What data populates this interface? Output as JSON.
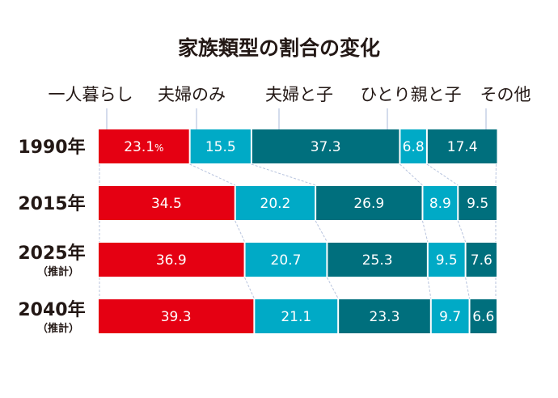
{
  "chart_data": {
    "type": "bar",
    "stacked": true,
    "orientation": "horizontal",
    "title": "家族類型の割合の変化",
    "unit": "%",
    "xlim": [
      0,
      100
    ],
    "legend_placement": "top",
    "series": [
      {
        "name": "一人暮らし",
        "color": "#e50012",
        "values": [
          23.1,
          34.5,
          36.9,
          39.3
        ]
      },
      {
        "name": "夫婦のみ",
        "color": "#00aac6",
        "values": [
          15.5,
          20.2,
          20.7,
          21.1
        ]
      },
      {
        "name": "夫婦と子",
        "color": "#006f7d",
        "values": [
          37.3,
          26.9,
          25.3,
          23.3
        ]
      },
      {
        "name": "ひとり親と子",
        "color": "#00aac6",
        "values": [
          6.8,
          8.9,
          9.5,
          9.7
        ]
      },
      {
        "name": "その他",
        "color": "#006f7d",
        "values": [
          17.4,
          9.5,
          7.6,
          6.6
        ]
      }
    ],
    "categories": [
      {
        "label": "1990年",
        "note": ""
      },
      {
        "label": "2015年",
        "note": ""
      },
      {
        "label": "2025年",
        "note": "（推計）"
      },
      {
        "label": "2040年",
        "note": "（推計）"
      }
    ],
    "connector_color": "#b8c4de"
  }
}
